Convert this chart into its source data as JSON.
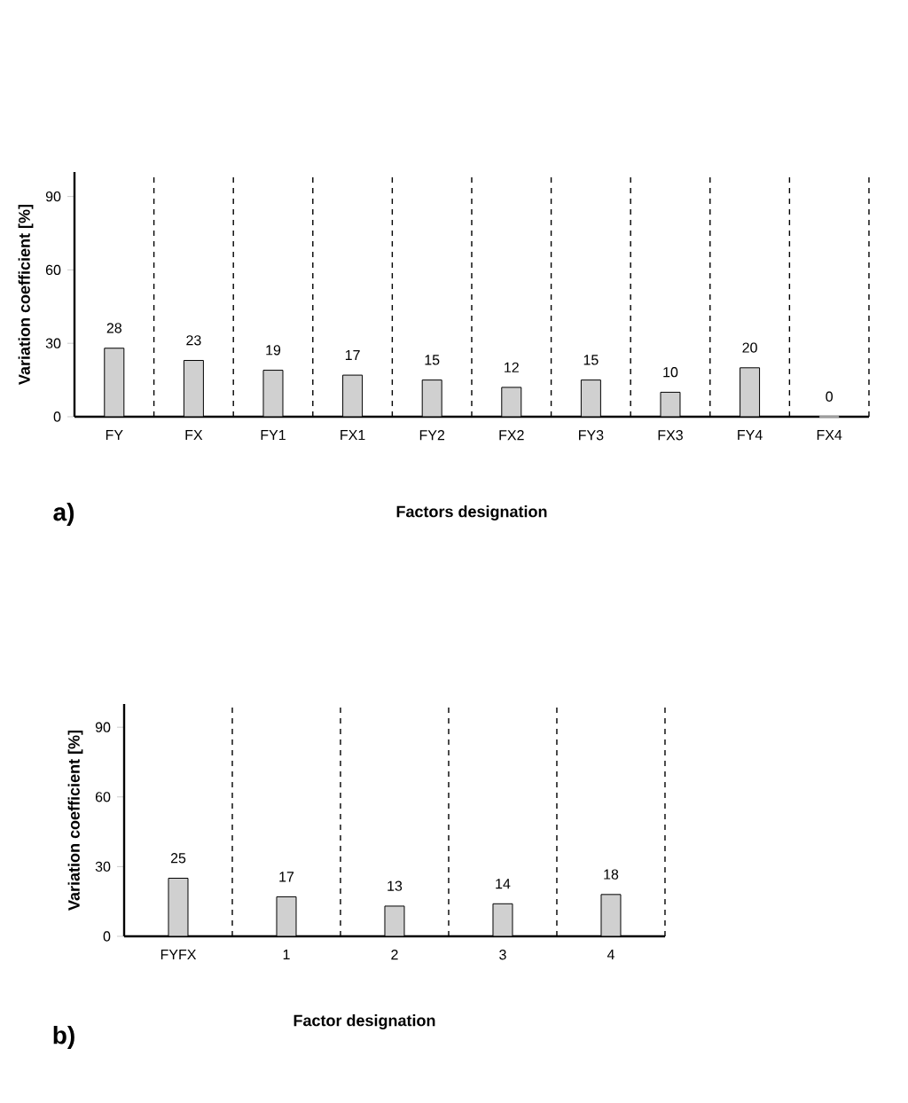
{
  "chart_data": [
    {
      "type": "bar",
      "categories": [
        "FY",
        "FX",
        "FY1",
        "FX1",
        "FY2",
        "FX2",
        "FY3",
        "FX3",
        "FY4",
        "FX4"
      ],
      "values": [
        28,
        23,
        19,
        17,
        15,
        12,
        15,
        10,
        20,
        0
      ],
      "color": "#d0d0d0",
      "ylim": [
        0,
        100
      ],
      "yticks": [
        0,
        30,
        60,
        90
      ],
      "xlabel": "Factors designation",
      "ylabel": "Variation coefficient  [%]",
      "data_labels": true,
      "grid": "x",
      "annotations": [
        "a)"
      ]
    },
    {
      "type": "bar",
      "categories": [
        "FYFX",
        "1",
        "2",
        "3",
        "4"
      ],
      "values": [
        25,
        17,
        13,
        14,
        18
      ],
      "color": "#d0d0d0",
      "ylim": [
        0,
        100
      ],
      "yticks": [
        0,
        30,
        60,
        90
      ],
      "xlabel": "Factor designation",
      "ylabel": "Variation coefficient  [%]",
      "data_labels": true,
      "grid": "x",
      "annotations": [
        "b)"
      ]
    }
  ]
}
